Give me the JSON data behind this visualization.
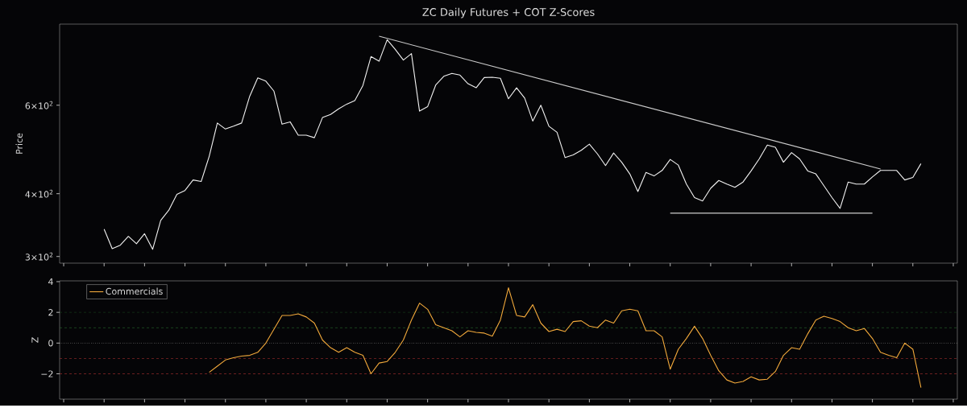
{
  "chart_data": [
    {
      "type": "line",
      "title": "ZC Daily Futures + COT Z-Scores",
      "ylabel": "Price",
      "log": "y",
      "categories": [
        null,
        null,
        null,
        null,
        null,
        null,
        null,
        null,
        null,
        null,
        null,
        null,
        null,
        null,
        null,
        null,
        null,
        null,
        null,
        null,
        null,
        null,
        null,
        null,
        null,
        null,
        null,
        null,
        null,
        null,
        null,
        null,
        null,
        null,
        null,
        null,
        null,
        null,
        null,
        null,
        null,
        null,
        null,
        null,
        null,
        null,
        null,
        null,
        null,
        null,
        null,
        null,
        null,
        null,
        null,
        null,
        null,
        null,
        null,
        null,
        null,
        null,
        null,
        null,
        null,
        null,
        null,
        null,
        null,
        null,
        null,
        null,
        null,
        null,
        null,
        null,
        null,
        null,
        null,
        null,
        null,
        null,
        null,
        null,
        null,
        null,
        null,
        null,
        null,
        null,
        null,
        null,
        null,
        null,
        null,
        null,
        null,
        null,
        null,
        null,
        null,
        null,
        null,
        null,
        null,
        null,
        null,
        null,
        null,
        null,
        null
      ],
      "ylim": [
        291,
        870
      ],
      "yticks": [
        {
          "value": 300,
          "label": "3×10$^{2}$"
        },
        {
          "value": 400,
          "label": "4×10$^{2}$"
        },
        {
          "value": 600,
          "label": "6×10$^{2}$"
        }
      ],
      "tick_labels": "y",
      "grid": false,
      "legend": false,
      "series": [
        {
          "color": "#f2f2f2",
          "values": [
            null,
            null,
            null,
            null,
            null,
            340,
            311,
            316,
            329,
            318,
            333,
            310,
            354,
            371,
            399,
            406,
            426,
            423,
            475,
            553,
            538,
            545,
            553,
            625,
            680,
            670,
            640,
            550,
            556,
            523,
            523,
            517,
            567,
            575,
            590,
            603,
            613,
            657,
            750,
            734,
            810,
            775,
            738,
            760,
            584,
            596,
            658,
            685,
            694,
            689,
            662,
            650,
            681,
            682,
            679,
            618,
            650,
            620,
            558,
            600,
            545,
            530,
            472,
            478,
            488,
            502,
            480,
            455,
            482,
            462,
            438,
            404,
            441,
            434,
            445,
            468,
            456,
            418,
            393,
            387,
            410,
            425,
            418,
            412,
            422,
            444,
            469,
            500,
            495,
            462,
            483,
            469,
            444,
            438,
            415,
            393,
            374,
            422,
            418,
            418,
            432,
            445,
            445,
            445,
            426,
            431,
            459,
            null,
            null,
            null,
            null
          ]
        },
        {
          "color": "#cccccc",
          "values": [
            null,
            null,
            null,
            null,
            null,
            null,
            null,
            null,
            null,
            null,
            null,
            null,
            null,
            null,
            null,
            null,
            null,
            null,
            null,
            null,
            null,
            null,
            null,
            null,
            null,
            null,
            null,
            null,
            null,
            null,
            null,
            null,
            null,
            null,
            null,
            null,
            null,
            null,
            null,
            823,
            null,
            null,
            null,
            null,
            null,
            null,
            null,
            null,
            null,
            null,
            null,
            null,
            null,
            null,
            null,
            null,
            null,
            null,
            null,
            null,
            null,
            null,
            null,
            null,
            null,
            null,
            null,
            null,
            null,
            null,
            null,
            null,
            null,
            null,
            null,
            null,
            null,
            null,
            null,
            null,
            null,
            null,
            null,
            null,
            null,
            null,
            null,
            null,
            null,
            null,
            null,
            null,
            null,
            null,
            null,
            null,
            null,
            null,
            null,
            null,
            null,
            448,
            null,
            null,
            null,
            null,
            null,
            null,
            null,
            null,
            null
          ]
        },
        {
          "color": "#cccccc",
          "values": [
            null,
            null,
            null,
            null,
            null,
            null,
            null,
            null,
            null,
            null,
            null,
            null,
            null,
            null,
            null,
            null,
            null,
            null,
            null,
            null,
            null,
            null,
            null,
            null,
            null,
            null,
            null,
            null,
            null,
            null,
            null,
            null,
            null,
            null,
            null,
            null,
            null,
            null,
            null,
            null,
            null,
            null,
            null,
            null,
            null,
            null,
            null,
            null,
            null,
            null,
            null,
            null,
            null,
            null,
            null,
            null,
            null,
            null,
            null,
            null,
            null,
            null,
            null,
            null,
            null,
            null,
            null,
            null,
            null,
            null,
            null,
            null,
            null,
            null,
            null,
            366,
            null,
            null,
            null,
            null,
            null,
            null,
            null,
            null,
            null,
            null,
            null,
            null,
            null,
            null,
            null,
            null,
            null,
            null,
            null,
            null,
            null,
            null,
            null,
            null,
            366,
            null,
            null,
            null,
            null,
            null,
            null,
            null,
            null,
            null,
            null
          ]
        }
      ]
    },
    {
      "type": "line",
      "ylabel": "Z",
      "categories": [
        null,
        null,
        null,
        null,
        null,
        null,
        null,
        null,
        null,
        null,
        null,
        null,
        null,
        null,
        null,
        null,
        null,
        null,
        null,
        null,
        null,
        null,
        null,
        null,
        null,
        null,
        null,
        null,
        null,
        null,
        null,
        null,
        null,
        null,
        null,
        null,
        null,
        null,
        null,
        null,
        null,
        null,
        null,
        null,
        null,
        null,
        null,
        null,
        null,
        null,
        null,
        null,
        null,
        null,
        null,
        null,
        null,
        null,
        null,
        null,
        null,
        null,
        null,
        null,
        null,
        null,
        null,
        null,
        null,
        null,
        null,
        null,
        null,
        null,
        null,
        null,
        null,
        null,
        null,
        null,
        null,
        null,
        null,
        null,
        null,
        null,
        null,
        null,
        null,
        null,
        null,
        null,
        null,
        null,
        null,
        null,
        null,
        null,
        null,
        null,
        null,
        null,
        null,
        null,
        null,
        null,
        null,
        null,
        null,
        null,
        null
      ],
      "ylim": [
        -3.65,
        4.05
      ],
      "yticks": [
        {
          "value": -2,
          "label": "−2"
        },
        0,
        2,
        4
      ],
      "tick_labels": "y",
      "grid": false,
      "legend": "top left",
      "ref_lines": [
        {
          "axis": "y",
          "value": 2,
          "color": "#2e7d32",
          "line_style": "dashed"
        },
        {
          "axis": "y",
          "value": 1,
          "color": "#2e7d32",
          "line_style": "dashed"
        },
        {
          "axis": "y",
          "value": 0,
          "color": "#e0e0e0",
          "line_style": "dotted"
        },
        {
          "axis": "y",
          "value": -1,
          "color": "#b03030",
          "line_style": "dashed"
        },
        {
          "axis": "y",
          "value": -2,
          "color": "#b03030",
          "line_style": "dashed"
        }
      ],
      "series": [
        {
          "name": "Commercials",
          "color": "#f2a93b",
          "values": [
            null,
            null,
            null,
            null,
            null,
            null,
            null,
            null,
            null,
            null,
            null,
            null,
            null,
            null,
            null,
            null,
            null,
            null,
            -1.9,
            -1.5,
            -1.1,
            -0.95,
            -0.85,
            -0.8,
            -0.6,
            0.0,
            0.9,
            1.8,
            1.8,
            1.9,
            1.7,
            1.3,
            0.2,
            -0.3,
            -0.6,
            -0.3,
            -0.6,
            -0.8,
            -2.0,
            -1.3,
            -1.2,
            -0.6,
            0.2,
            1.5,
            2.6,
            2.2,
            1.2,
            1.0,
            0.8,
            0.4,
            0.8,
            0.7,
            0.65,
            0.45,
            1.5,
            3.6,
            1.8,
            1.7,
            2.5,
            1.3,
            0.75,
            0.9,
            0.75,
            1.4,
            1.45,
            1.1,
            1.0,
            1.5,
            1.3,
            2.1,
            2.2,
            2.1,
            0.8,
            0.8,
            0.4,
            -1.7,
            -0.4,
            0.3,
            1.1,
            0.3,
            -0.8,
            -1.8,
            -2.4,
            -2.6,
            -2.5,
            -2.2,
            -2.4,
            -2.35,
            -1.85,
            -0.8,
            -0.3,
            -0.4,
            0.6,
            1.5,
            1.75,
            1.6,
            1.4,
            1.0,
            0.8,
            0.95,
            0.3,
            -0.6,
            -0.8,
            -0.95,
            0.0,
            -0.4,
            -2.9,
            null,
            null,
            null,
            null
          ]
        }
      ]
    }
  ]
}
